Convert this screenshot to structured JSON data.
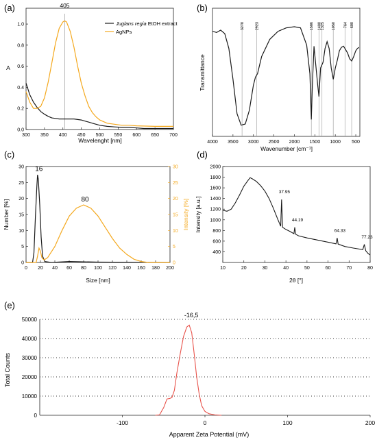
{
  "panels": {
    "a": {
      "panel_label": "(a)",
      "type": "line",
      "xlabel": "Wavelenght [nm]",
      "ylabel": "A",
      "xlim": [
        300,
        700
      ],
      "ylim": [
        0,
        1.15
      ],
      "xticks": [
        300,
        350,
        400,
        450,
        500,
        550,
        600,
        650,
        700
      ],
      "yticks": [
        0.0,
        0.2,
        0.4,
        0.6,
        0.8,
        1.0
      ],
      "annotations": [
        {
          "text": "405",
          "x": 405
        }
      ],
      "legend_position": "top-right",
      "series": [
        {
          "name_italic": "Juglans regia",
          "name": "EtOH extract",
          "color": "#1a1a1a",
          "points": [
            [
              300,
              0.44
            ],
            [
              310,
              0.33
            ],
            [
              320,
              0.26
            ],
            [
              330,
              0.21
            ],
            [
              340,
              0.17
            ],
            [
              350,
              0.145
            ],
            [
              360,
              0.125
            ],
            [
              370,
              0.11
            ],
            [
              380,
              0.105
            ],
            [
              390,
              0.1
            ],
            [
              400,
              0.1
            ],
            [
              410,
              0.1
            ],
            [
              420,
              0.1
            ],
            [
              430,
              0.1
            ],
            [
              440,
              0.095
            ],
            [
              450,
              0.09
            ],
            [
              460,
              0.08
            ],
            [
              470,
              0.07
            ],
            [
              480,
              0.06
            ],
            [
              490,
              0.05
            ],
            [
              500,
              0.04
            ],
            [
              520,
              0.03
            ],
            [
              540,
              0.025
            ],
            [
              560,
              0.02
            ],
            [
              580,
              0.02
            ],
            [
              600,
              0.015
            ],
            [
              620,
              0.01
            ],
            [
              650,
              0.01
            ],
            [
              700,
              0.01
            ]
          ]
        },
        {
          "name": "AgNPs",
          "color": "#f4a81d",
          "points": [
            [
              300,
              0.36
            ],
            [
              310,
              0.26
            ],
            [
              320,
              0.2
            ],
            [
              330,
              0.2
            ],
            [
              340,
              0.22
            ],
            [
              350,
              0.3
            ],
            [
              360,
              0.45
            ],
            [
              370,
              0.63
            ],
            [
              380,
              0.82
            ],
            [
              390,
              0.96
            ],
            [
              400,
              1.02
            ],
            [
              405,
              1.03
            ],
            [
              410,
              1.02
            ],
            [
              420,
              0.93
            ],
            [
              430,
              0.78
            ],
            [
              440,
              0.6
            ],
            [
              450,
              0.44
            ],
            [
              460,
              0.32
            ],
            [
              470,
              0.22
            ],
            [
              480,
              0.16
            ],
            [
              490,
              0.12
            ],
            [
              500,
              0.09
            ],
            [
              520,
              0.06
            ],
            [
              540,
              0.05
            ],
            [
              560,
              0.04
            ],
            [
              580,
              0.04
            ],
            [
              600,
              0.035
            ],
            [
              650,
              0.03
            ],
            [
              700,
              0.03
            ]
          ]
        }
      ]
    },
    "b": {
      "panel_label": "(b)",
      "type": "line",
      "xlabel": "Wavenumber [cm⁻¹]",
      "ylabel": "Transmittance",
      "xlim": [
        4000,
        400
      ],
      "ylim": [
        0,
        1
      ],
      "xticks": [
        4000,
        3500,
        3000,
        2500,
        2000,
        1500,
        1000,
        500
      ],
      "peak_markers": [
        "3278",
        "2923",
        "1586",
        "1400",
        "1325",
        "1050",
        "764",
        "600"
      ],
      "peak_positions": [
        3278,
        2923,
        1586,
        1400,
        1325,
        1050,
        764,
        600
      ],
      "series": [
        {
          "name": "",
          "color": "#1a1a1a",
          "points": [
            [
              4000,
              0.87
            ],
            [
              3900,
              0.86
            ],
            [
              3800,
              0.88
            ],
            [
              3700,
              0.85
            ],
            [
              3600,
              0.72
            ],
            [
              3500,
              0.45
            ],
            [
              3400,
              0.15
            ],
            [
              3300,
              0.05
            ],
            [
              3200,
              0.06
            ],
            [
              3100,
              0.18
            ],
            [
              3000,
              0.4
            ],
            [
              2950,
              0.47
            ],
            [
              2900,
              0.5
            ],
            [
              2800,
              0.65
            ],
            [
              2600,
              0.8
            ],
            [
              2400,
              0.87
            ],
            [
              2200,
              0.9
            ],
            [
              2000,
              0.91
            ],
            [
              1850,
              0.9
            ],
            [
              1700,
              0.75
            ],
            [
              1620,
              0.5
            ],
            [
              1586,
              0.1
            ],
            [
              1560,
              0.4
            ],
            [
              1520,
              0.74
            ],
            [
              1470,
              0.55
            ],
            [
              1430,
              0.4
            ],
            [
              1400,
              0.3
            ],
            [
              1360,
              0.55
            ],
            [
              1300,
              0.6
            ],
            [
              1250,
              0.72
            ],
            [
              1200,
              0.78
            ],
            [
              1150,
              0.72
            ],
            [
              1100,
              0.55
            ],
            [
              1050,
              0.45
            ],
            [
              1000,
              0.55
            ],
            [
              950,
              0.62
            ],
            [
              900,
              0.7
            ],
            [
              850,
              0.73
            ],
            [
              800,
              0.74
            ],
            [
              764,
              0.72
            ],
            [
              700,
              0.68
            ],
            [
              650,
              0.63
            ],
            [
              600,
              0.61
            ],
            [
              550,
              0.65
            ],
            [
              500,
              0.7
            ],
            [
              460,
              0.72
            ],
            [
              420,
              0.73
            ]
          ]
        }
      ]
    },
    "c": {
      "panel_label": "(c)",
      "type": "line",
      "xlabel": "Size [nm]",
      "ylabel": "Number [%]",
      "y2label": "Intensity [%]",
      "xlim": [
        0,
        200
      ],
      "ylim": [
        0,
        30
      ],
      "y2lim": [
        0,
        30
      ],
      "xticks": [
        0,
        20,
        40,
        60,
        80,
        100,
        120,
        140,
        160,
        180,
        200
      ],
      "yticks": [
        0,
        5,
        10,
        15,
        20,
        25,
        30
      ],
      "annotations": [
        {
          "text": "16",
          "x": 16,
          "y": 27.5
        },
        {
          "text": "80",
          "x": 80,
          "y": 18
        }
      ],
      "series": [
        {
          "name": "Number",
          "color": "#1a1a1a",
          "points": [
            [
              0,
              0
            ],
            [
              9,
              0
            ],
            [
              11,
              3
            ],
            [
              13,
              14
            ],
            [
              15,
              24
            ],
            [
              16,
              27.4
            ],
            [
              17,
              26
            ],
            [
              19,
              18
            ],
            [
              21,
              8
            ],
            [
              23,
              2
            ],
            [
              26,
              0.3
            ],
            [
              35,
              0
            ],
            [
              60,
              0.3
            ],
            [
              100,
              0.1
            ],
            [
              200,
              0
            ]
          ]
        },
        {
          "name": "Intensity",
          "color": "#f4a81d",
          "points": [
            [
              0,
              0
            ],
            [
              14,
              0
            ],
            [
              16,
              2
            ],
            [
              18,
              4.5
            ],
            [
              20,
              3.5
            ],
            [
              22,
              1.5
            ],
            [
              25,
              0.8
            ],
            [
              30,
              1.5
            ],
            [
              40,
              5
            ],
            [
              50,
              10
            ],
            [
              60,
              14.5
            ],
            [
              70,
              17
            ],
            [
              80,
              18
            ],
            [
              90,
              17
            ],
            [
              100,
              14.5
            ],
            [
              110,
              11
            ],
            [
              120,
              7.5
            ],
            [
              130,
              4.5
            ],
            [
              140,
              2.5
            ],
            [
              150,
              1
            ],
            [
              160,
              0.3
            ],
            [
              170,
              0
            ],
            [
              200,
              0
            ]
          ]
        }
      ]
    },
    "d": {
      "panel_label": "(d)",
      "type": "line",
      "xlabel": "2θ [°]",
      "ylabel": "Intensity [a.u.]",
      "xlim": [
        10,
        80
      ],
      "ylim": [
        200,
        2000
      ],
      "xticks": [
        10,
        20,
        30,
        40,
        50,
        60,
        70,
        80
      ],
      "yticks": [
        400,
        600,
        800,
        1000,
        1200,
        1400,
        1600,
        1800,
        2000
      ],
      "annotations": [
        {
          "text": "37.95",
          "x": 37.95,
          "y": 1450
        },
        {
          "text": "44.19",
          "x": 44.19,
          "y": 920
        },
        {
          "text": "64.33",
          "x": 64.33,
          "y": 720
        },
        {
          "text": "77.23",
          "x": 77.23,
          "y": 600
        }
      ],
      "series": [
        {
          "name": "",
          "color": "#1a1a1a",
          "points": [
            [
              10,
              1180
            ],
            [
              12,
              1160
            ],
            [
              14,
              1200
            ],
            [
              16,
              1320
            ],
            [
              18,
              1470
            ],
            [
              20,
              1630
            ],
            [
              22,
              1740
            ],
            [
              23,
              1790
            ],
            [
              24,
              1770
            ],
            [
              26,
              1720
            ],
            [
              28,
              1640
            ],
            [
              30,
              1540
            ],
            [
              32,
              1400
            ],
            [
              34,
              1220
            ],
            [
              36,
              1020
            ],
            [
              37.5,
              880
            ],
            [
              37.95,
              1380
            ],
            [
              38.4,
              860
            ],
            [
              40,
              820
            ],
            [
              42,
              780
            ],
            [
              43.8,
              740
            ],
            [
              44.19,
              860
            ],
            [
              44.6,
              730
            ],
            [
              46,
              700
            ],
            [
              50,
              660
            ],
            [
              55,
              620
            ],
            [
              60,
              580
            ],
            [
              63.8,
              550
            ],
            [
              64.33,
              660
            ],
            [
              64.8,
              545
            ],
            [
              68,
              500
            ],
            [
              72,
              470
            ],
            [
              76.5,
              440
            ],
            [
              77.23,
              540
            ],
            [
              77.9,
              420
            ],
            [
              79,
              370
            ],
            [
              80,
              340
            ]
          ]
        }
      ]
    },
    "e": {
      "panel_label": "(e)",
      "type": "line",
      "xlabel": "Apparent Zeta Potential (mV)",
      "ylabel": "Total Counts",
      "xlim": [
        -200,
        200
      ],
      "ylim": [
        0,
        50000
      ],
      "xticks": [
        -100,
        0,
        100,
        200
      ],
      "yticks": [
        0,
        10000,
        20000,
        30000,
        40000,
        50000
      ],
      "annotations": [
        {
          "text": "-16,5",
          "x": -16.5
        }
      ],
      "series": [
        {
          "name": "",
          "color": "#e8524a",
          "points": [
            [
              -60,
              0
            ],
            [
              -55,
              200
            ],
            [
              -50,
              4000
            ],
            [
              -46,
              8500
            ],
            [
              -43,
              8700
            ],
            [
              -40,
              9200
            ],
            [
              -37,
              13000
            ],
            [
              -34,
              22000
            ],
            [
              -30,
              32000
            ],
            [
              -26,
              41000
            ],
            [
              -22,
              46000
            ],
            [
              -19,
              47000
            ],
            [
              -16,
              43000
            ],
            [
              -13,
              32000
            ],
            [
              -10,
              20000
            ],
            [
              -7,
              11000
            ],
            [
              -4,
              5000
            ],
            [
              0,
              2000
            ],
            [
              5,
              800
            ],
            [
              12,
              200
            ],
            [
              20,
              0
            ]
          ]
        }
      ]
    }
  }
}
